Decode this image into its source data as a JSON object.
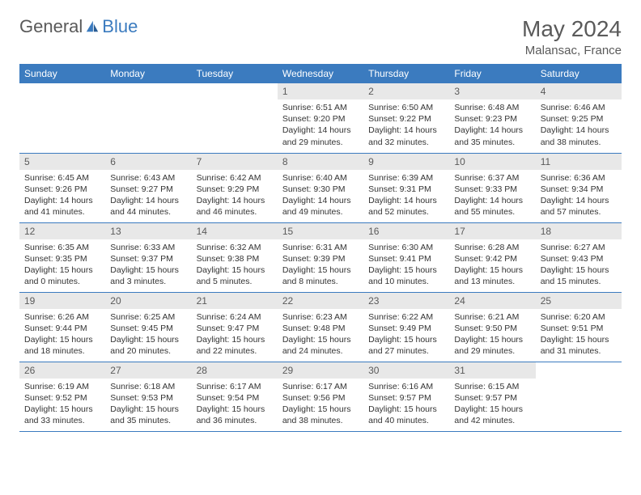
{
  "brand": {
    "part1": "General",
    "part2": "Blue"
  },
  "title": "May 2024",
  "location": "Malansac, France",
  "colors": {
    "header_bg": "#3b7bbf",
    "header_text": "#ffffff",
    "daynum_bg": "#e8e8e8",
    "text": "#333333",
    "muted": "#5a5a5a",
    "rule": "#3b7bbf"
  },
  "weekdays": [
    "Sunday",
    "Monday",
    "Tuesday",
    "Wednesday",
    "Thursday",
    "Friday",
    "Saturday"
  ],
  "grid": [
    [
      null,
      null,
      null,
      {
        "n": "1",
        "sr": "6:51 AM",
        "ss": "9:20 PM",
        "dl": "14 hours and 29 minutes."
      },
      {
        "n": "2",
        "sr": "6:50 AM",
        "ss": "9:22 PM",
        "dl": "14 hours and 32 minutes."
      },
      {
        "n": "3",
        "sr": "6:48 AM",
        "ss": "9:23 PM",
        "dl": "14 hours and 35 minutes."
      },
      {
        "n": "4",
        "sr": "6:46 AM",
        "ss": "9:25 PM",
        "dl": "14 hours and 38 minutes."
      }
    ],
    [
      {
        "n": "5",
        "sr": "6:45 AM",
        "ss": "9:26 PM",
        "dl": "14 hours and 41 minutes."
      },
      {
        "n": "6",
        "sr": "6:43 AM",
        "ss": "9:27 PM",
        "dl": "14 hours and 44 minutes."
      },
      {
        "n": "7",
        "sr": "6:42 AM",
        "ss": "9:29 PM",
        "dl": "14 hours and 46 minutes."
      },
      {
        "n": "8",
        "sr": "6:40 AM",
        "ss": "9:30 PM",
        "dl": "14 hours and 49 minutes."
      },
      {
        "n": "9",
        "sr": "6:39 AM",
        "ss": "9:31 PM",
        "dl": "14 hours and 52 minutes."
      },
      {
        "n": "10",
        "sr": "6:37 AM",
        "ss": "9:33 PM",
        "dl": "14 hours and 55 minutes."
      },
      {
        "n": "11",
        "sr": "6:36 AM",
        "ss": "9:34 PM",
        "dl": "14 hours and 57 minutes."
      }
    ],
    [
      {
        "n": "12",
        "sr": "6:35 AM",
        "ss": "9:35 PM",
        "dl": "15 hours and 0 minutes."
      },
      {
        "n": "13",
        "sr": "6:33 AM",
        "ss": "9:37 PM",
        "dl": "15 hours and 3 minutes."
      },
      {
        "n": "14",
        "sr": "6:32 AM",
        "ss": "9:38 PM",
        "dl": "15 hours and 5 minutes."
      },
      {
        "n": "15",
        "sr": "6:31 AM",
        "ss": "9:39 PM",
        "dl": "15 hours and 8 minutes."
      },
      {
        "n": "16",
        "sr": "6:30 AM",
        "ss": "9:41 PM",
        "dl": "15 hours and 10 minutes."
      },
      {
        "n": "17",
        "sr": "6:28 AM",
        "ss": "9:42 PM",
        "dl": "15 hours and 13 minutes."
      },
      {
        "n": "18",
        "sr": "6:27 AM",
        "ss": "9:43 PM",
        "dl": "15 hours and 15 minutes."
      }
    ],
    [
      {
        "n": "19",
        "sr": "6:26 AM",
        "ss": "9:44 PM",
        "dl": "15 hours and 18 minutes."
      },
      {
        "n": "20",
        "sr": "6:25 AM",
        "ss": "9:45 PM",
        "dl": "15 hours and 20 minutes."
      },
      {
        "n": "21",
        "sr": "6:24 AM",
        "ss": "9:47 PM",
        "dl": "15 hours and 22 minutes."
      },
      {
        "n": "22",
        "sr": "6:23 AM",
        "ss": "9:48 PM",
        "dl": "15 hours and 24 minutes."
      },
      {
        "n": "23",
        "sr": "6:22 AM",
        "ss": "9:49 PM",
        "dl": "15 hours and 27 minutes."
      },
      {
        "n": "24",
        "sr": "6:21 AM",
        "ss": "9:50 PM",
        "dl": "15 hours and 29 minutes."
      },
      {
        "n": "25",
        "sr": "6:20 AM",
        "ss": "9:51 PM",
        "dl": "15 hours and 31 minutes."
      }
    ],
    [
      {
        "n": "26",
        "sr": "6:19 AM",
        "ss": "9:52 PM",
        "dl": "15 hours and 33 minutes."
      },
      {
        "n": "27",
        "sr": "6:18 AM",
        "ss": "9:53 PM",
        "dl": "15 hours and 35 minutes."
      },
      {
        "n": "28",
        "sr": "6:17 AM",
        "ss": "9:54 PM",
        "dl": "15 hours and 36 minutes."
      },
      {
        "n": "29",
        "sr": "6:17 AM",
        "ss": "9:56 PM",
        "dl": "15 hours and 38 minutes."
      },
      {
        "n": "30",
        "sr": "6:16 AM",
        "ss": "9:57 PM",
        "dl": "15 hours and 40 minutes."
      },
      {
        "n": "31",
        "sr": "6:15 AM",
        "ss": "9:57 PM",
        "dl": "15 hours and 42 minutes."
      },
      null
    ]
  ],
  "labels": {
    "sunrise": "Sunrise:",
    "sunset": "Sunset:",
    "daylight": "Daylight:"
  }
}
